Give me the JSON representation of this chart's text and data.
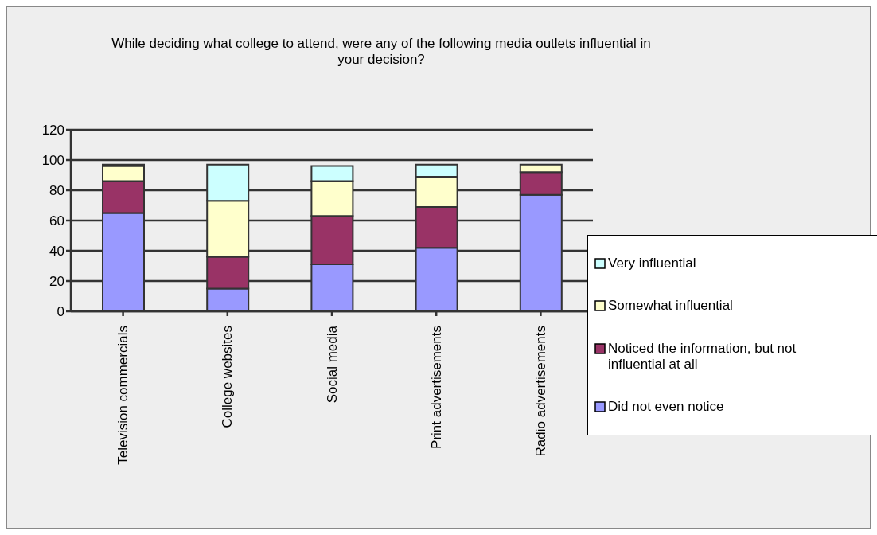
{
  "chart_data": {
    "type": "bar",
    "stacked": true,
    "title": "While deciding what college to attend, were any of the following media outlets influential in your decision?",
    "categories": [
      "Television commercials",
      "College websites",
      "Social media",
      "Print advertisements",
      "Radio advertisements"
    ],
    "series": [
      {
        "name": "Did not even notice",
        "color": "#9999ff",
        "values": [
          65,
          15,
          31,
          42,
          77
        ]
      },
      {
        "name": "Noticed the information, but not influential at all",
        "color": "#993366",
        "values": [
          21,
          21,
          32,
          27,
          15
        ]
      },
      {
        "name": "Somewhat influential",
        "color": "#ffffcc",
        "values": [
          10,
          37,
          23,
          20,
          5
        ]
      },
      {
        "name": "Very influential",
        "color": "#ccffff",
        "values": [
          1,
          24,
          10,
          8,
          0
        ]
      }
    ],
    "ylim": [
      0,
      120
    ],
    "yticks": [
      0,
      20,
      40,
      60,
      80,
      100,
      120
    ],
    "grid": "y",
    "legend": "right"
  }
}
